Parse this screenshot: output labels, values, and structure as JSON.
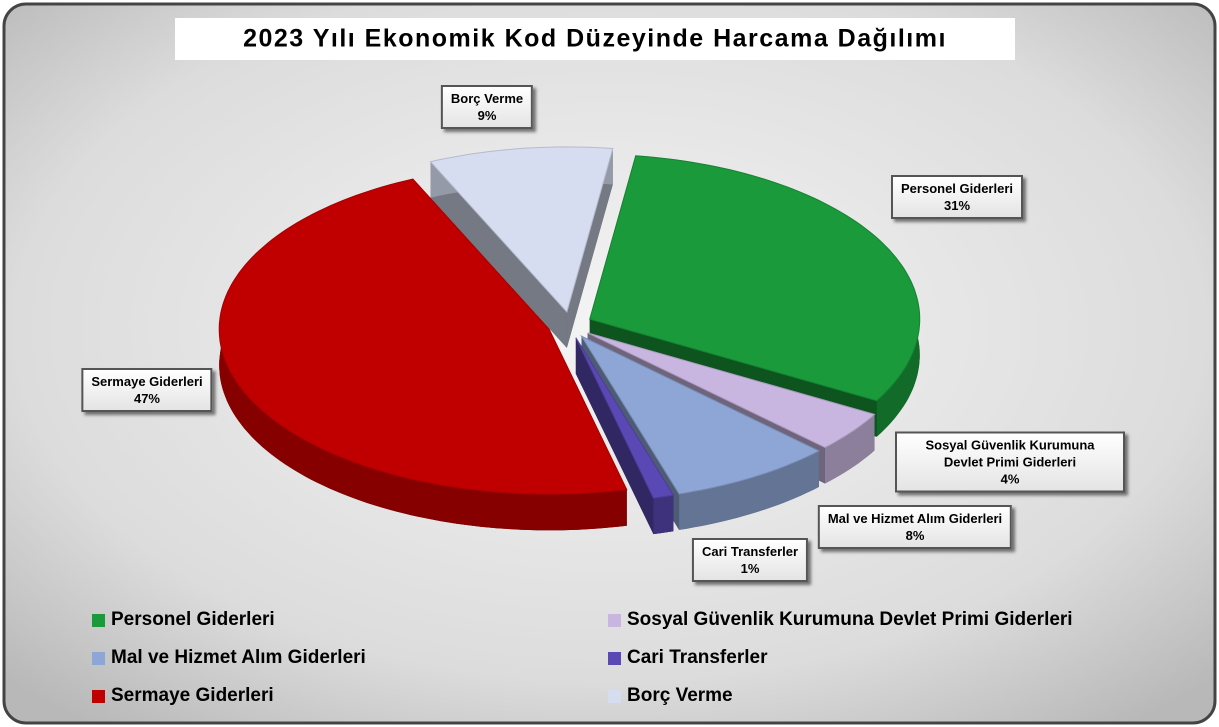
{
  "chart_data": {
    "type": "pie",
    "title": "2023 Yılı Ekonomik Kod Düzeyinde Harcama Dağılımı",
    "categories": [
      "Personel Giderleri",
      "Sosyal Güvenlik Kurumuna Devlet Primi Giderleri",
      "Mal ve Hizmet Alım Giderleri",
      "Cari Transferler",
      "Sermaye Giderleri",
      "Borç Verme"
    ],
    "values": [
      31,
      4,
      8,
      1,
      47,
      9
    ],
    "value_labels": [
      "31%",
      "4%",
      "8%",
      "1%",
      "47%",
      "9%"
    ],
    "colors": [
      "#1a9a3a",
      "#c8b6e0",
      "#8ea6d6",
      "#5a48b4",
      "#c00000",
      "#d6ddf0"
    ],
    "legend": "bottom"
  }
}
